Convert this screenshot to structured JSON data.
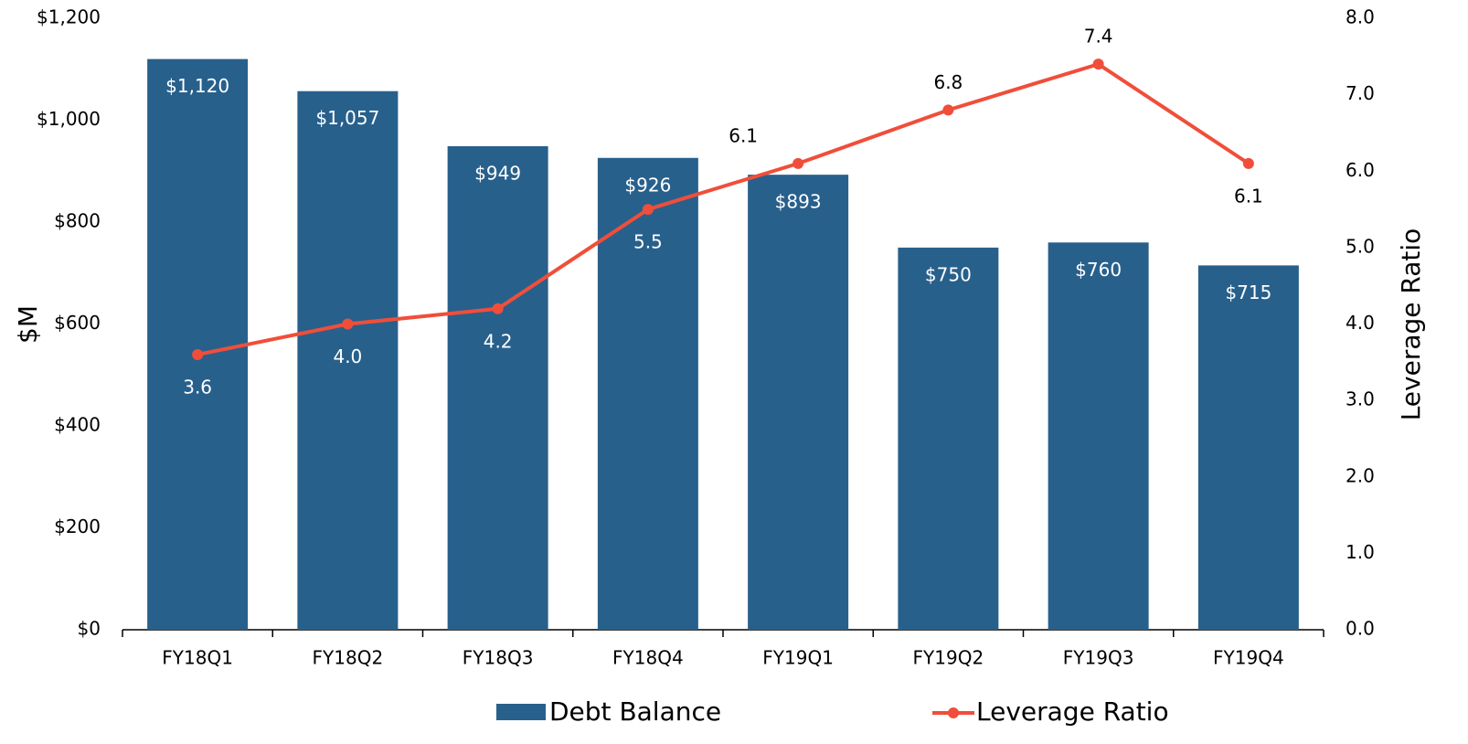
{
  "chart_data": {
    "type": "bar_line",
    "categories": [
      "FY18Q1",
      "FY18Q2",
      "FY18Q3",
      "FY18Q4",
      "FY19Q1",
      "FY19Q2",
      "FY19Q3",
      "FY19Q4"
    ],
    "series": [
      {
        "name": "Debt Balance",
        "type": "bar",
        "color": "#28608c",
        "axis": "y",
        "values": [
          1120,
          1057,
          949,
          926,
          893,
          750,
          760,
          715
        ],
        "value_labels": [
          "$1,120",
          "$1,057",
          "$949",
          "$926",
          "$893",
          "$750",
          "$760",
          "$715"
        ]
      },
      {
        "name": "Leverage Ratio",
        "type": "line",
        "color": "#f04e3a",
        "axis": "y2",
        "values": [
          3.6,
          4.0,
          4.2,
          5.5,
          6.1,
          6.8,
          7.4,
          6.1
        ],
        "value_labels": [
          "3.6",
          "4.0",
          "4.2",
          "5.5",
          "6.1",
          "6.8",
          "7.4",
          "6.1"
        ]
      }
    ],
    "ylabel": "$M",
    "y2label": "Leverage Ratio",
    "ylim": [
      0,
      1200
    ],
    "yticks": [
      {
        "value": 0,
        "label": "$0"
      },
      {
        "value": 200,
        "label": "$200"
      },
      {
        "value": 400,
        "label": "$400"
      },
      {
        "value": 600,
        "label": "$600"
      },
      {
        "value": 800,
        "label": "$800"
      },
      {
        "value": 1000,
        "label": "$1,000"
      },
      {
        "value": 1200,
        "label": "$1,200"
      }
    ],
    "y2lim": [
      0,
      8
    ],
    "y2ticks": [
      {
        "value": 0,
        "label": "0.0"
      },
      {
        "value": 1,
        "label": "1.0"
      },
      {
        "value": 2,
        "label": "2.0"
      },
      {
        "value": 3,
        "label": "3.0"
      },
      {
        "value": 4,
        "label": "4.0"
      },
      {
        "value": 5,
        "label": "5.0"
      },
      {
        "value": 6,
        "label": "6.0"
      },
      {
        "value": 7,
        "label": "7.0"
      },
      {
        "value": 8,
        "label": "8.0"
      }
    ],
    "grid": false,
    "legend": "bottom"
  }
}
